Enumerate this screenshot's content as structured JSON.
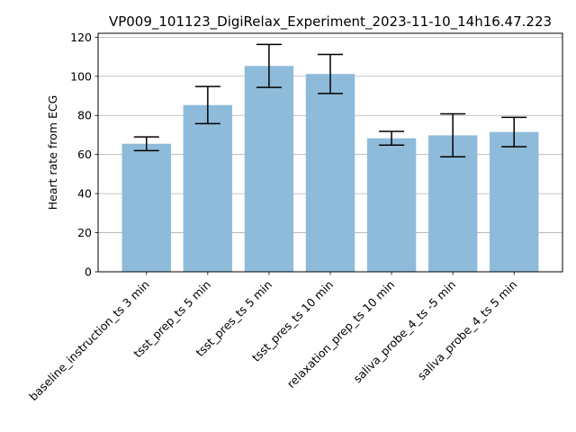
{
  "chart_data": {
    "type": "bar",
    "title": "VP009_101123_DigiRelax_Experiment_2023-11-10_14h16.47.223",
    "xlabel": "",
    "ylabel": "Heart rate from ECG",
    "categories": [
      "baseline_instruction_ts 3 min",
      "tsst_prep_ts 5 min",
      "tsst_pres_ts 5 min",
      "tsst_pres_ts 10 min",
      "relaxation_prep_ts 10 min",
      "saliva_probe_4_ts -5 min",
      "saliva_probe_4_ts 5 min"
    ],
    "values": [
      65.5,
      85.3,
      105.3,
      101.2,
      68.3,
      69.8,
      71.5
    ],
    "errors": [
      3.5,
      9.5,
      11.0,
      10.0,
      3.5,
      11.0,
      7.5
    ],
    "ylim": [
      0,
      122
    ],
    "yticks": [
      0,
      20,
      40,
      60,
      80,
      100,
      120
    ],
    "grid": "horizontal",
    "bar_color": "#8fbbda",
    "error_color": "#000000"
  }
}
